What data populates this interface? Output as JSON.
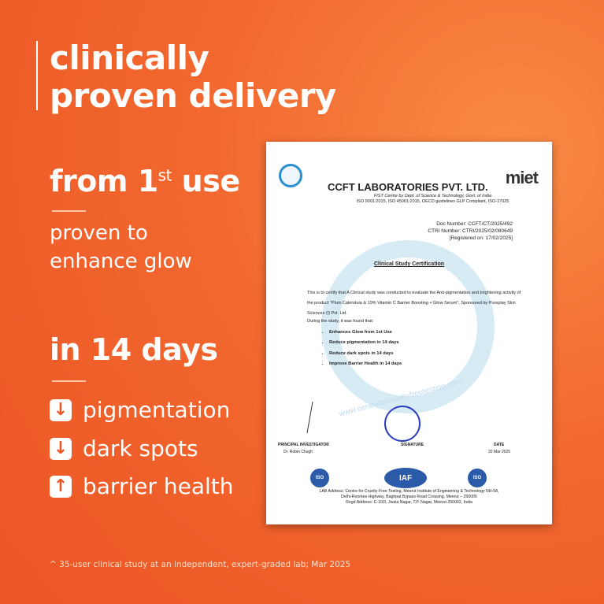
{
  "headline": [
    "clinically",
    "proven delivery"
  ],
  "first_use": {
    "prefix": "from 1",
    "sup": "st",
    "suffix": " use"
  },
  "first_use_desc": [
    "proven to",
    "enhance glow"
  ],
  "duration": "in 14 days",
  "benefits": [
    {
      "icon": "arrow-down-icon",
      "glyph": "↓",
      "label": "pigmentation"
    },
    {
      "icon": "arrow-down-icon",
      "glyph": "↓",
      "label": "dark spots"
    },
    {
      "icon": "arrow-up-icon",
      "glyph": "↑",
      "label": "barrier health"
    }
  ],
  "footnote": "^ 35-user clinical study at an independent, expert-graded lab; Mar 2025",
  "certificate": {
    "lab_name": "CCFT LABORATORIES PVT. LTD.",
    "subtitle": "FIST Centre by Dept. of Science & Technology, Govt. of India",
    "iso": "ISO 9001:2015, ISO 45001:2015, OECD guidelines GLP Compliant, ISO-17025",
    "partner_logo": "miet",
    "doc_number": "Doc Number: CCFT/CT/2025/492",
    "ctri_number": "CTRI Number:  CTRI/2025/02/080649",
    "registered": "[Registered on: 17/02/2025]",
    "title": "Clinical Study Certification",
    "body": "This is to certify that A Clinical study was conducted to evaluate the Anti-pigmentation and brightening activity of the product \"Plum Calendula & 10% Vitamin C Barrier Boosting + Glow Serum\", Sponsored by Pureplay Skin Sciences (I) Pvt. Ltd.",
    "found": "During the study, it was found that:",
    "findings": [
      "Enhances Glow from 1st Use",
      "Reduce pigmentation in 14 days",
      "Reduce dark spots in 14 days",
      "Improve Barrier Health in 14 days"
    ],
    "watermark": "www.centreforcrueltyfreetesting.com",
    "pi_label": "PRINCIPAL INVESTIGATOR",
    "pi_name": "Dr. Robin Chugh",
    "signature_label": "SIGNATURE",
    "date_label": "DATE",
    "date": "20 Mar 2025",
    "badges": [
      "ISO",
      "IAF",
      "ISO"
    ],
    "address": [
      "LAB Address: Centre for Cruelty-Free Testing, Meerut Institute of Engineering & Technology NH-58,",
      "Delhi-Roorkee Highway, Baghpat Bypass Road Crossing, Meerut – 250005",
      "Regd Address: C-10/3, Jwala Nagar, T.P. Nagar, Meerut 250002, India"
    ]
  }
}
